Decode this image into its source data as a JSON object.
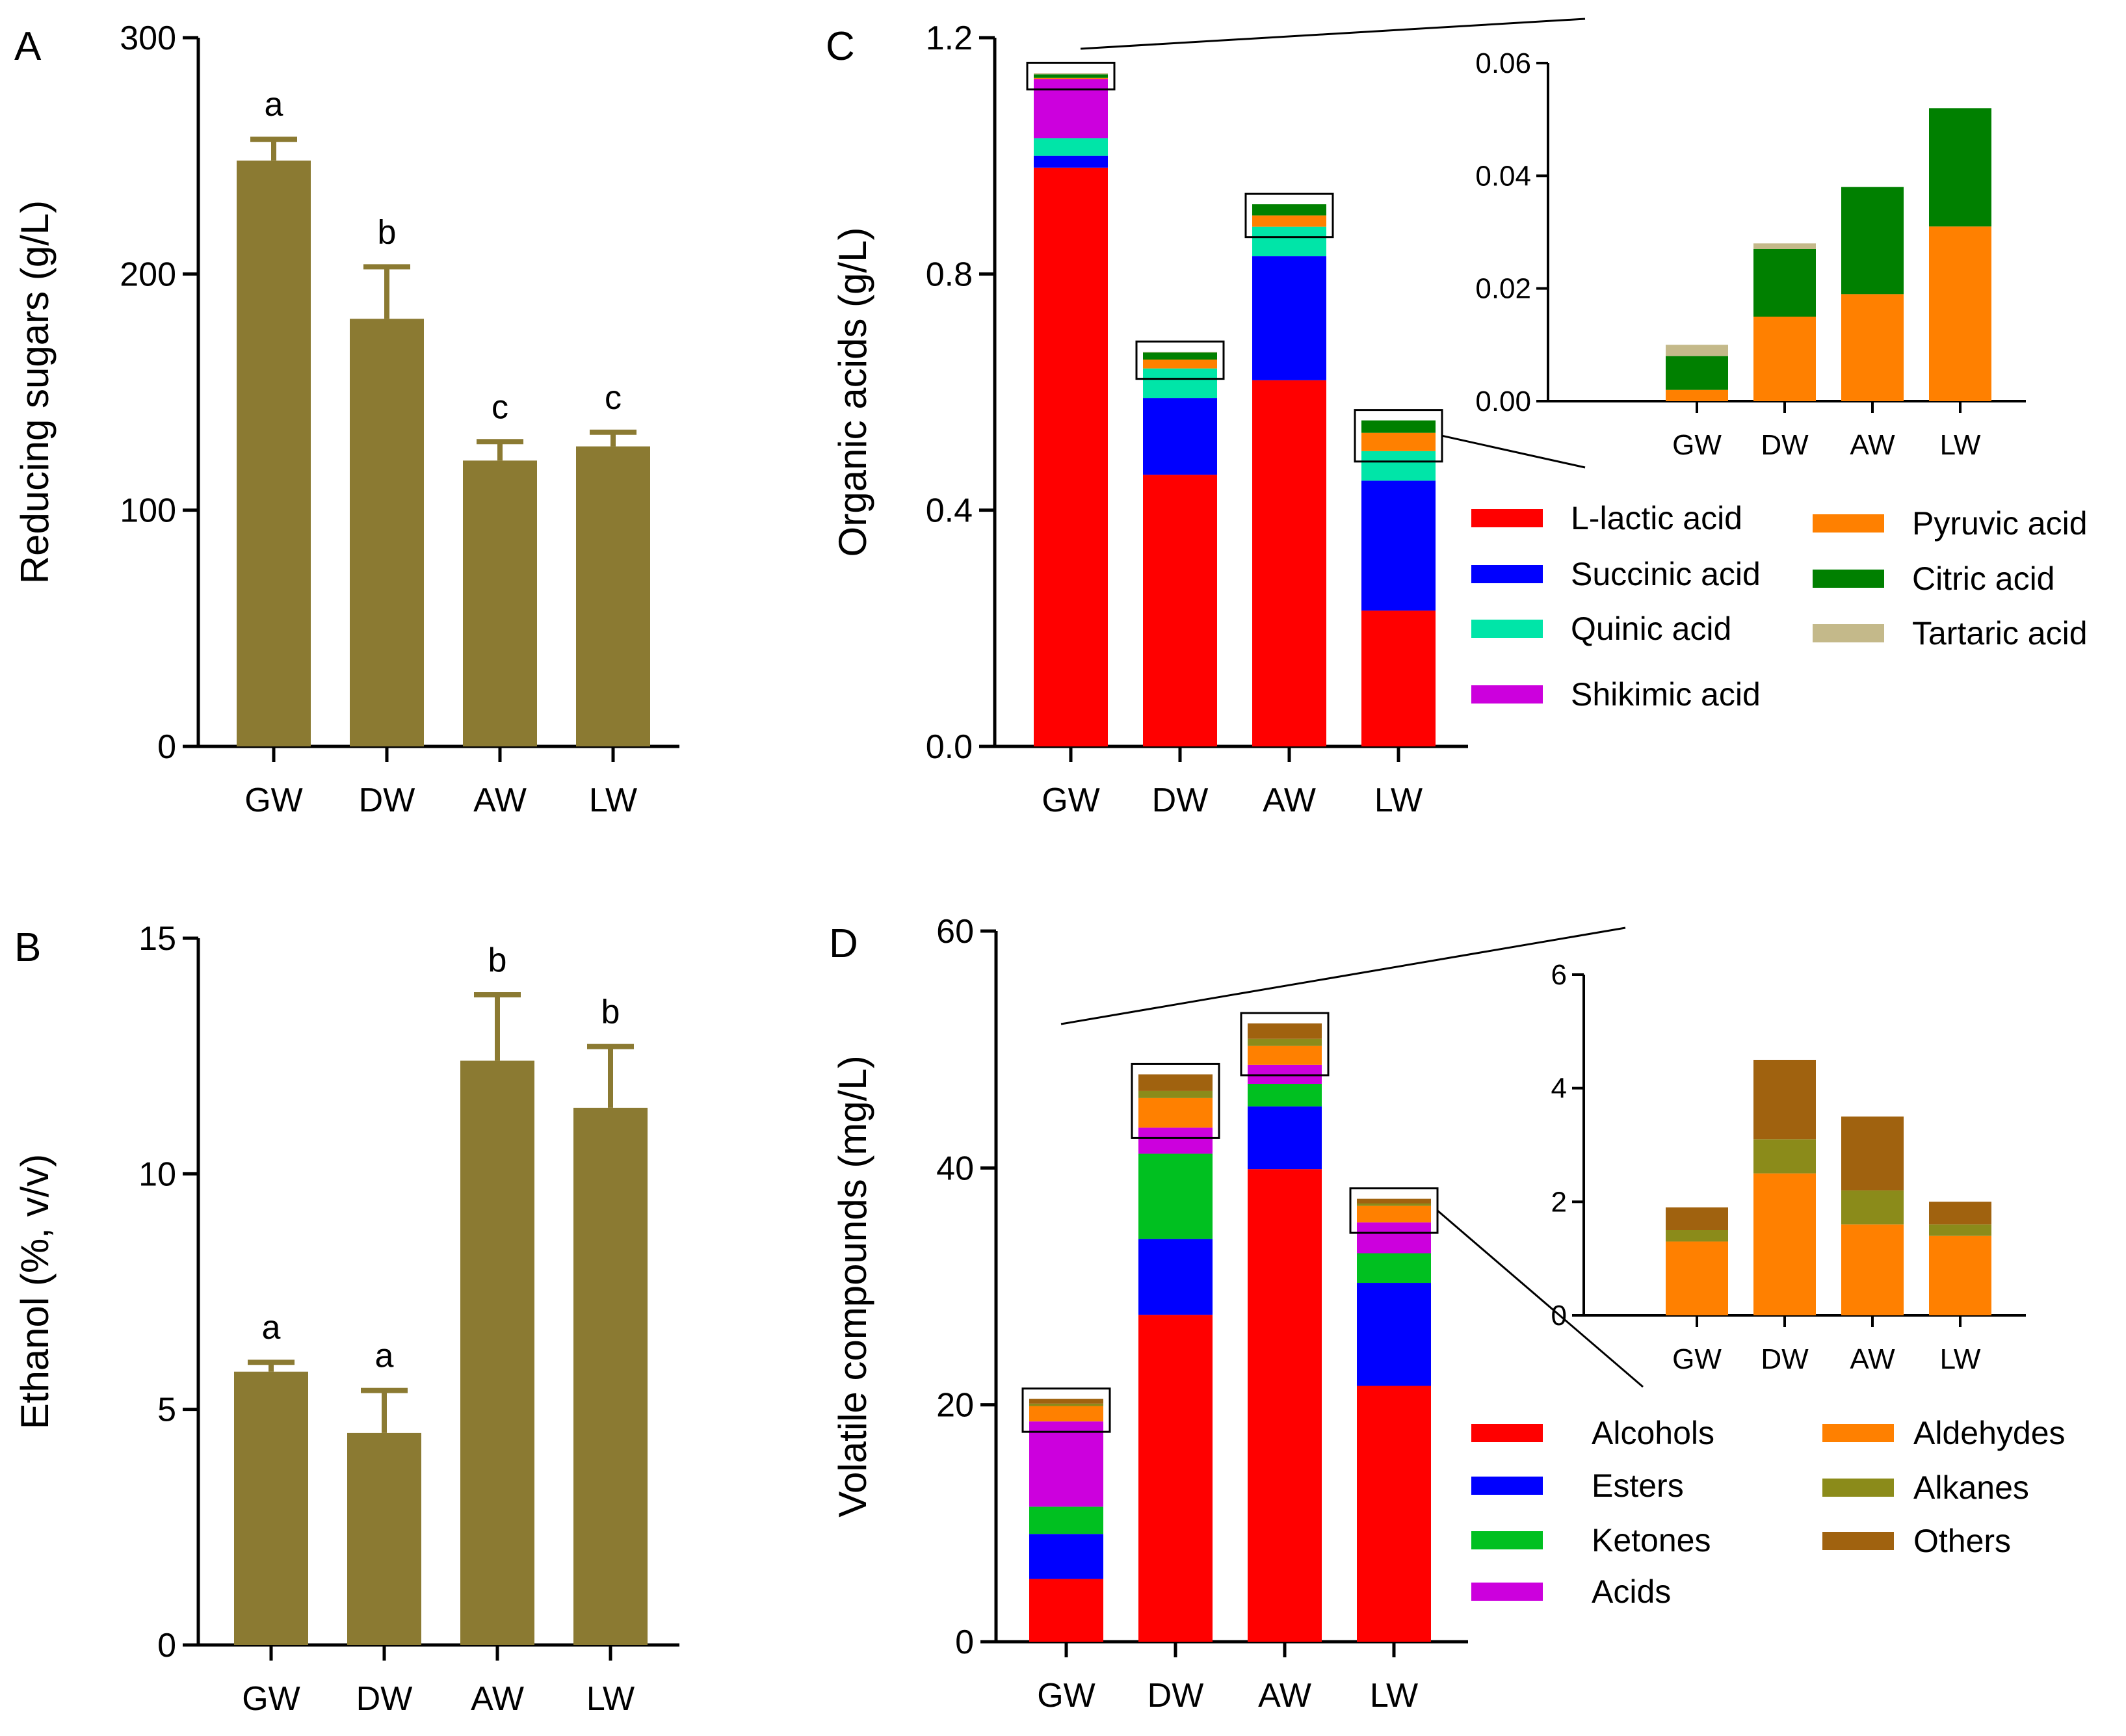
{
  "panels": {
    "A": {
      "letter": "A",
      "chart_data": {
        "type": "bar",
        "categories": [
          "GW",
          "DW",
          "AW",
          "LW"
        ],
        "values": [
          248,
          181,
          121,
          127
        ],
        "errors": [
          9,
          22,
          8,
          6
        ],
        "significance": [
          "a",
          "b",
          "c",
          "c"
        ],
        "ylabel": "Reducing sugars (g/L)",
        "ylim": [
          0,
          300
        ],
        "yticks": [
          "0",
          "100",
          "200",
          "300"
        ],
        "color": "#8b7a32"
      }
    },
    "B": {
      "letter": "B",
      "chart_data": {
        "type": "bar",
        "categories": [
          "GW",
          "DW",
          "AW",
          "LW"
        ],
        "values": [
          5.8,
          4.5,
          12.4,
          11.4
        ],
        "errors": [
          0.2,
          0.9,
          1.4,
          1.3
        ],
        "significance": [
          "a",
          "a",
          "b",
          "b"
        ],
        "ylabel": "Ethanol (%, v/v)",
        "ylim": [
          0,
          15
        ],
        "yticks": [
          "0",
          "5",
          "10",
          "15"
        ],
        "color": "#8b7a32"
      }
    },
    "C": {
      "letter": "C",
      "chart_data": {
        "type": "bar",
        "stacked": true,
        "categories": [
          "GW",
          "DW",
          "AW",
          "LW"
        ],
        "ylabel": "Organic acids (g/L)",
        "ylim": [
          0,
          1.2
        ],
        "yticks": [
          "0.0",
          "0.4",
          "0.8",
          "1.2"
        ],
        "series": [
          {
            "name": "L-lactic acid",
            "color": "#ff0000",
            "values": [
              0.98,
              0.46,
              0.62,
              0.23
            ]
          },
          {
            "name": "Succinic acid",
            "color": "#0000ff",
            "values": [
              0.02,
              0.13,
              0.21,
              0.22
            ]
          },
          {
            "name": "Quinic acid",
            "color": "#00e5a8",
            "values": [
              0.03,
              0.05,
              0.05,
              0.05
            ]
          },
          {
            "name": "Shikimic acid",
            "color": "#cc00dd",
            "values": [
              0.1,
              0.0,
              0.0,
              0.0
            ]
          },
          {
            "name": "Pyruvic acid",
            "color": "#ff8000",
            "values": [
              0.002,
              0.015,
              0.019,
              0.031
            ]
          },
          {
            "name": "Citric acid",
            "color": "#008000",
            "values": [
              0.006,
              0.012,
              0.019,
              0.021
            ]
          },
          {
            "name": "Tartaric acid",
            "color": "#c4b98a",
            "values": [
              0.002,
              0.001,
              0.0,
              0.0
            ]
          }
        ],
        "inset": {
          "ylim": [
            0,
            0.06
          ],
          "yticks": [
            "0.00",
            "0.02",
            "0.04",
            "0.06"
          ],
          "series_names": [
            "Pyruvic acid",
            "Citric acid",
            "Tartaric acid"
          ]
        }
      }
    },
    "D": {
      "letter": "D",
      "chart_data": {
        "type": "bar",
        "stacked": true,
        "categories": [
          "GW",
          "DW",
          "AW",
          "LW"
        ],
        "ylabel": "Volatile compounds (mg/L)",
        "ylim": [
          0,
          60
        ],
        "yticks": [
          "0",
          "20",
          "40",
          "60"
        ],
        "series": [
          {
            "name": "Alcohols",
            "color": "#ff0000",
            "values": [
              5.3,
              27.6,
              39.9,
              21.6
            ]
          },
          {
            "name": "Esters",
            "color": "#0000ff",
            "values": [
              3.8,
              6.4,
              5.3,
              8.7
            ]
          },
          {
            "name": "Ketones",
            "color": "#00c020",
            "values": [
              2.3,
              7.2,
              1.9,
              2.5
            ]
          },
          {
            "name": "Acids",
            "color": "#cc00dd",
            "values": [
              7.2,
              2.2,
              1.6,
              2.6
            ]
          },
          {
            "name": "Aldehydes",
            "color": "#ff8000",
            "values": [
              1.3,
              2.5,
              1.6,
              1.4
            ]
          },
          {
            "name": "Alkanes",
            "color": "#8b8b1a",
            "values": [
              0.2,
              0.6,
              0.6,
              0.2
            ]
          },
          {
            "name": "Others",
            "color": "#a0620f",
            "values": [
              0.4,
              1.4,
              1.3,
              0.4
            ]
          }
        ],
        "inset": {
          "ylim": [
            0,
            6
          ],
          "yticks": [
            "0",
            "2",
            "4",
            "6"
          ],
          "series_names": [
            "Aldehydes",
            "Alkanes",
            "Others"
          ]
        }
      }
    }
  }
}
